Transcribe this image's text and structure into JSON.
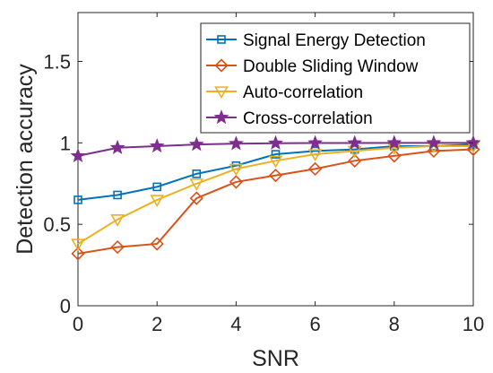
{
  "chart_data": {
    "type": "line",
    "title": "",
    "xlabel": "SNR",
    "ylabel": "Detection accuracy",
    "xlim": [
      0,
      10
    ],
    "ylim": [
      0,
      1.8
    ],
    "xticks": [
      0,
      2,
      4,
      6,
      8,
      10
    ],
    "yticks": [
      0,
      0.5,
      1,
      1.5
    ],
    "ytick_labels": [
      "0",
      "0.5",
      "1",
      "1.5"
    ],
    "grid": false,
    "legend_position": "top-right",
    "x": [
      0,
      1,
      2,
      3,
      4,
      5,
      6,
      7,
      8,
      9,
      10
    ],
    "series": [
      {
        "name": "Signal Energy Detection",
        "color": "#0072BD",
        "marker": "square",
        "values": [
          0.65,
          0.68,
          0.73,
          0.81,
          0.86,
          0.93,
          0.95,
          0.96,
          0.98,
          0.98,
          0.99
        ]
      },
      {
        "name": "Double Sliding Window",
        "color": "#D95319",
        "marker": "diamond",
        "values": [
          0.32,
          0.36,
          0.38,
          0.66,
          0.76,
          0.8,
          0.84,
          0.89,
          0.92,
          0.95,
          0.96
        ]
      },
      {
        "name": "Auto-correlation",
        "color": "#EDB120",
        "marker": "triangle-down",
        "values": [
          0.38,
          0.53,
          0.65,
          0.75,
          0.84,
          0.89,
          0.93,
          0.95,
          0.97,
          0.98,
          0.98
        ]
      },
      {
        "name": "Cross-correlation",
        "color": "#7E2F8E",
        "marker": "star",
        "values": [
          0.92,
          0.97,
          0.98,
          0.99,
          0.995,
          0.998,
          0.999,
          0.999,
          1.0,
          1.0,
          1.0
        ]
      }
    ]
  }
}
